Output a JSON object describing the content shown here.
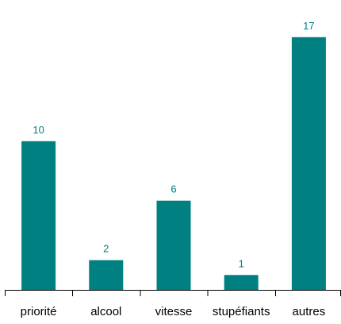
{
  "chart_data": {
    "type": "bar",
    "categories": [
      "priorité",
      "alcool",
      "vitesse",
      "stupéfiants",
      "autres"
    ],
    "values": [
      10,
      2,
      6,
      1,
      17
    ],
    "title": "",
    "xlabel": "",
    "ylabel": "",
    "ylim": [
      0,
      19.5
    ],
    "grid": false,
    "legend": "none",
    "data_labels": true,
    "bar_color": "#008080",
    "label_color": "#008080"
  }
}
